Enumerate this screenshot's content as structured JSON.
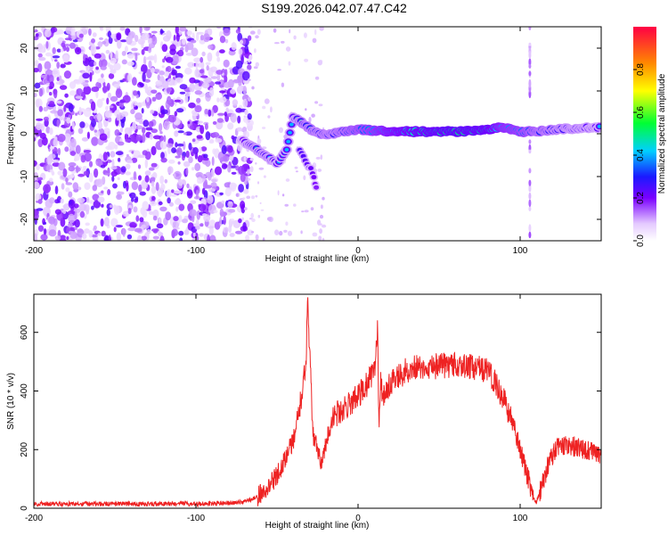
{
  "title": "S199.2026.042.07.47.C42",
  "chart_data": [
    {
      "type": "heatmap",
      "title": "S199.2026.042.07.47.C42",
      "xlabel": "Height of straight line (km)",
      "ylabel": "Frequency (Hz)",
      "xlim": [
        -200,
        150
      ],
      "ylim": [
        -25,
        25
      ],
      "xticks": [
        -200,
        -100,
        0,
        100
      ],
      "xtick_labels": [
        "-200",
        "-100",
        "0",
        "100"
      ],
      "yticks": [
        -20,
        -10,
        0,
        10,
        20
      ],
      "ytick_labels": [
        "-20",
        "-10",
        "0",
        "10",
        "20"
      ],
      "colorbar": {
        "label": "Normalized spectral amplitude",
        "range": [
          0,
          1
        ],
        "ticks": [
          0.0,
          0.2,
          0.4,
          0.6,
          0.8
        ],
        "tick_labels": [
          "0.0",
          "0.2",
          "0.4",
          "0.6",
          "0.8"
        ]
      },
      "features": {
        "noise_region_x": [
          -200,
          -72
        ],
        "ridge": [
          {
            "x": -72,
            "y": -1.5,
            "amp": 0.35
          },
          {
            "x": -65,
            "y": -3,
            "amp": 0.45
          },
          {
            "x": -58,
            "y": -5,
            "amp": 0.45
          },
          {
            "x": -50,
            "y": -7,
            "amp": 0.4
          },
          {
            "x": -44,
            "y": -4,
            "amp": 0.4
          },
          {
            "x": -40,
            "y": 4,
            "amp": 0.4
          },
          {
            "x": -34,
            "y": 2.5,
            "amp": 0.5
          },
          {
            "x": -25,
            "y": 0,
            "amp": 0.5
          },
          {
            "x": -15,
            "y": 0,
            "amp": 0.5
          },
          {
            "x": 0,
            "y": 1,
            "amp": 0.6
          },
          {
            "x": 20,
            "y": 0.5,
            "amp": 0.75
          },
          {
            "x": 40,
            "y": 0.5,
            "amp": 0.85
          },
          {
            "x": 60,
            "y": 0.5,
            "amp": 0.9
          },
          {
            "x": 80,
            "y": 1,
            "amp": 0.85
          },
          {
            "x": 90,
            "y": 1.5,
            "amp": 0.7
          },
          {
            "x": 100,
            "y": 0.5,
            "amp": 0.65
          },
          {
            "x": 110,
            "y": 0.5,
            "amp": 0.55
          },
          {
            "x": 130,
            "y": 1.2,
            "amp": 0.45
          },
          {
            "x": 150,
            "y": 1.5,
            "amp": 0.4
          }
        ],
        "branch": [
          {
            "x": -36,
            "y": -4,
            "amp": 0.35
          },
          {
            "x": -28,
            "y": -9,
            "amp": 0.3
          },
          {
            "x": -25,
            "y": -14,
            "amp": 0.25
          }
        ],
        "vertical_artifact_x": 106
      }
    },
    {
      "type": "line",
      "xlabel": "Height of straight line (km)",
      "ylabel": "SNR (10 * v/v)",
      "xlim": [
        -200,
        150
      ],
      "ylim": [
        0,
        730
      ],
      "xticks": [
        -200,
        -100,
        0,
        100
      ],
      "xtick_labels": [
        "-200",
        "-100",
        "0",
        "100"
      ],
      "yticks": [
        0,
        200,
        400,
        600
      ],
      "ytick_labels": [
        "0",
        "200",
        "400",
        "600"
      ],
      "series": [
        {
          "name": "SNR",
          "color": "#ee2222",
          "x": [
            -200,
            -180,
            -160,
            -140,
            -120,
            -100,
            -80,
            -70,
            -62,
            -55,
            -50,
            -45,
            -40,
            -35,
            -32,
            -31,
            -30,
            -28,
            -25,
            -22,
            -20,
            -15,
            -10,
            -5,
            0,
            5,
            10,
            12,
            13,
            14,
            15,
            20,
            25,
            30,
            35,
            40,
            50,
            60,
            70,
            80,
            85,
            90,
            95,
            100,
            105,
            108,
            110,
            113,
            118,
            123,
            130,
            140,
            150
          ],
          "y": [
            15,
            15,
            15,
            15,
            15,
            15,
            18,
            22,
            40,
            80,
            110,
            170,
            230,
            380,
            520,
            730,
            560,
            260,
            200,
            150,
            220,
            320,
            330,
            360,
            380,
            420,
            470,
            600,
            280,
            430,
            380,
            430,
            450,
            470,
            480,
            480,
            485,
            490,
            480,
            470,
            430,
            370,
            300,
            200,
            100,
            40,
            20,
            70,
            160,
            210,
            215,
            200,
            180
          ]
        }
      ]
    }
  ]
}
